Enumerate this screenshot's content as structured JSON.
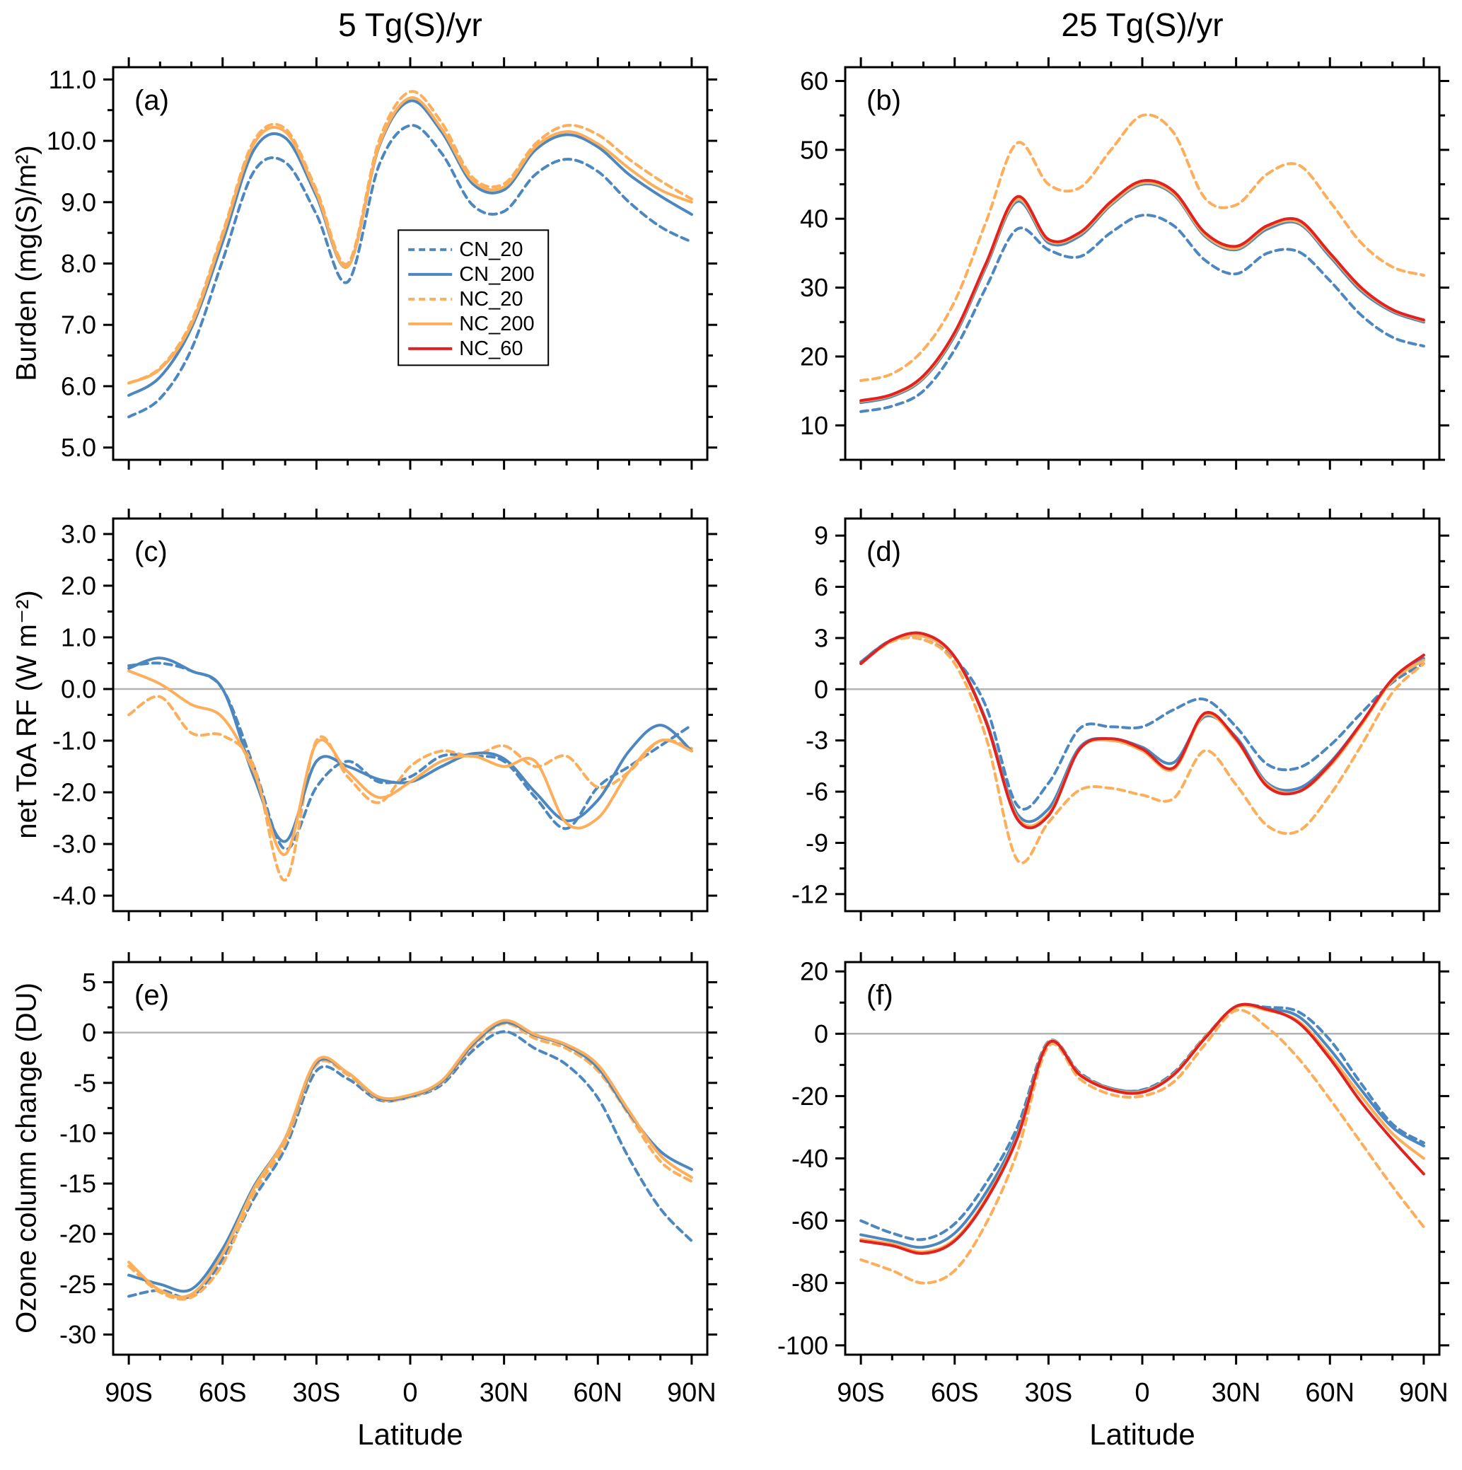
{
  "figure": {
    "column_titles": [
      "5 Tg(S)/yr",
      "25 Tg(S)/yr"
    ],
    "xlabel": "Latitude",
    "row_ylabels": [
      "Burden (mg(S)/m²)",
      "net ToA RF (W m⁻²)",
      "Ozone column change (DU)"
    ]
  },
  "colors": {
    "blue": "#4c87bf",
    "orange": "#fcae5a",
    "red": "#e02220",
    "zero_line": "#b3b3b3",
    "frame": "#000000"
  },
  "legend": {
    "entries": [
      {
        "label": "CN_20",
        "color_key": "blue",
        "dashed": true
      },
      {
        "label": "CN_200",
        "color_key": "blue",
        "dashed": false
      },
      {
        "label": "NC_20",
        "color_key": "orange",
        "dashed": true
      },
      {
        "label": "NC_200",
        "color_key": "orange",
        "dashed": false
      },
      {
        "label": "NC_60",
        "color_key": "red",
        "dashed": false
      }
    ]
  },
  "chart_data": [
    {
      "id": "a",
      "label": "(a)",
      "type": "line",
      "row": 0,
      "col": 0,
      "ylim": [
        4.8,
        11.2
      ],
      "yticks": [
        5,
        6,
        7,
        8,
        9,
        10,
        11
      ],
      "ytick_labels": [
        "5.0",
        "6.0",
        "7.0",
        "8.0",
        "9.0",
        "10.0",
        "11.0"
      ],
      "xlim": [
        -95,
        95
      ],
      "xticks": [
        -90,
        -60,
        -30,
        0,
        30,
        60,
        90
      ],
      "xtick_labels": [
        "90S",
        "60S",
        "30S",
        "0",
        "30N",
        "60N",
        "90N"
      ],
      "zero_line": false,
      "legend": true,
      "x": [
        -90,
        -80,
        -70,
        -60,
        -50,
        -40,
        -30,
        -20,
        -10,
        0,
        10,
        20,
        30,
        40,
        50,
        60,
        70,
        80,
        90
      ],
      "series": [
        {
          "name": "CN_20",
          "color_key": "blue",
          "dashed": true,
          "values": [
            5.5,
            5.8,
            6.6,
            8.05,
            9.5,
            9.65,
            8.8,
            7.7,
            9.6,
            10.25,
            9.8,
            8.95,
            8.85,
            9.45,
            9.7,
            9.5,
            9.0,
            8.6,
            8.35
          ]
        },
        {
          "name": "CN_200",
          "color_key": "blue",
          "dashed": false,
          "values": [
            5.85,
            6.15,
            6.95,
            8.35,
            9.85,
            10.05,
            9.1,
            7.95,
            9.9,
            10.65,
            10.15,
            9.3,
            9.2,
            9.85,
            10.1,
            9.9,
            9.45,
            9.1,
            8.8
          ]
        },
        {
          "name": "NC_20",
          "color_key": "orange",
          "dashed": true,
          "values": [
            6.05,
            6.3,
            7.05,
            8.5,
            10.0,
            10.2,
            9.2,
            8.0,
            10.0,
            10.8,
            10.3,
            9.4,
            9.3,
            9.95,
            10.25,
            10.1,
            9.7,
            9.35,
            9.05
          ]
        },
        {
          "name": "NC_200",
          "color_key": "orange",
          "dashed": false,
          "values": [
            6.05,
            6.28,
            7.0,
            8.45,
            9.95,
            10.15,
            9.15,
            7.95,
            9.92,
            10.7,
            10.2,
            9.35,
            9.25,
            9.9,
            10.15,
            9.95,
            9.55,
            9.2,
            9.0
          ]
        }
      ]
    },
    {
      "id": "b",
      "label": "(b)",
      "type": "line",
      "row": 0,
      "col": 1,
      "ylim": [
        5,
        62
      ],
      "yticks": [
        10,
        20,
        30,
        40,
        50,
        60
      ],
      "ytick_labels": [
        "10",
        "20",
        "30",
        "40",
        "50",
        "60"
      ],
      "xlim": [
        -95,
        95
      ],
      "xticks": [
        -90,
        -60,
        -30,
        0,
        30,
        60,
        90
      ],
      "xtick_labels": [
        "90S",
        "60S",
        "30S",
        "0",
        "30N",
        "60N",
        "90N"
      ],
      "zero_line": false,
      "legend": false,
      "x": [
        -90,
        -80,
        -70,
        -60,
        -50,
        -40,
        -30,
        -20,
        -10,
        0,
        10,
        20,
        30,
        40,
        50,
        60,
        70,
        80,
        90
      ],
      "series": [
        {
          "name": "CN_20",
          "color_key": "blue",
          "dashed": true,
          "values": [
            12,
            12.8,
            15,
            21,
            30,
            38.5,
            35.5,
            34.5,
            38,
            40.5,
            39,
            34,
            32,
            35,
            35.2,
            31,
            26,
            22.8,
            21.5
          ]
        },
        {
          "name": "CN_200",
          "color_key": "blue",
          "dashed": false,
          "values": [
            13.3,
            14.2,
            16.8,
            23,
            33,
            42.5,
            36.5,
            37.5,
            42,
            45,
            43.5,
            37.5,
            35.5,
            38.5,
            39.3,
            34.5,
            29.5,
            26.5,
            25
          ]
        },
        {
          "name": "NC_20",
          "color_key": "orange",
          "dashed": true,
          "values": [
            16.5,
            17.5,
            21,
            28,
            39.5,
            51,
            45,
            44.5,
            50,
            55,
            52.5,
            43,
            42,
            46.5,
            47.8,
            42.5,
            36.5,
            33,
            31.8
          ]
        },
        {
          "name": "NC_200",
          "color_key": "orange",
          "dashed": false,
          "values": [
            13.5,
            14.4,
            17,
            23.3,
            33.3,
            42.8,
            36.8,
            37.8,
            42.2,
            45.2,
            43.7,
            37.7,
            35.7,
            38.8,
            39.5,
            34.8,
            29.8,
            26.7,
            25.2
          ]
        },
        {
          "name": "NC_60",
          "color_key": "red",
          "dashed": false,
          "values": [
            13.6,
            14.5,
            17.2,
            23.5,
            33.5,
            43.2,
            37,
            38,
            42.5,
            45.5,
            44,
            38,
            36,
            39,
            39.8,
            35,
            30,
            26.8,
            25.3
          ]
        }
      ]
    },
    {
      "id": "c",
      "label": "(c)",
      "type": "line",
      "row": 1,
      "col": 0,
      "ylim": [
        -4.3,
        3.3
      ],
      "yticks": [
        -4,
        -3,
        -2,
        -1,
        0,
        1,
        2,
        3
      ],
      "ytick_labels": [
        "-4.0",
        "-3.0",
        "-2.0",
        "-1.0",
        "0.0",
        "1.0",
        "2.0",
        "3.0"
      ],
      "xlim": [
        -95,
        95
      ],
      "xticks": [
        -90,
        -60,
        -30,
        0,
        30,
        60,
        90
      ],
      "xtick_labels": [
        "90S",
        "60S",
        "30S",
        "0",
        "30N",
        "60N",
        "90N"
      ],
      "zero_line": true,
      "legend": false,
      "x": [
        -90,
        -80,
        -70,
        -60,
        -50,
        -40,
        -30,
        -20,
        -10,
        0,
        10,
        20,
        30,
        40,
        50,
        60,
        70,
        80,
        90
      ],
      "series": [
        {
          "name": "CN_20",
          "color_key": "blue",
          "dashed": true,
          "values": [
            0.45,
            0.5,
            0.35,
            0.0,
            -1.5,
            -3.1,
            -1.9,
            -1.4,
            -1.8,
            -1.7,
            -1.3,
            -1.3,
            -1.4,
            -2.1,
            -2.7,
            -1.9,
            -1.5,
            -1.1,
            -0.7
          ]
        },
        {
          "name": "CN_200",
          "color_key": "blue",
          "dashed": false,
          "values": [
            0.4,
            0.6,
            0.35,
            0.0,
            -1.7,
            -2.95,
            -1.4,
            -1.5,
            -1.75,
            -1.8,
            -1.5,
            -1.25,
            -1.35,
            -2.0,
            -2.55,
            -2.15,
            -1.2,
            -0.7,
            -1.2
          ]
        },
        {
          "name": "NC_20",
          "color_key": "orange",
          "dashed": true,
          "values": [
            -0.5,
            -0.15,
            -0.85,
            -0.9,
            -1.5,
            -3.7,
            -1.0,
            -1.7,
            -2.2,
            -1.5,
            -1.2,
            -1.3,
            -1.1,
            -1.5,
            -1.3,
            -1.9,
            -1.6,
            -1.0,
            -1.15
          ]
        },
        {
          "name": "NC_200",
          "color_key": "orange",
          "dashed": false,
          "values": [
            0.35,
            0.1,
            -0.3,
            -0.55,
            -1.6,
            -3.2,
            -1.05,
            -1.6,
            -2.1,
            -1.8,
            -1.4,
            -1.3,
            -1.5,
            -1.4,
            -2.6,
            -2.5,
            -1.6,
            -1.0,
            -1.2
          ]
        }
      ]
    },
    {
      "id": "d",
      "label": "(d)",
      "type": "line",
      "row": 1,
      "col": 1,
      "ylim": [
        -13,
        10
      ],
      "yticks": [
        -12,
        -9,
        -6,
        -3,
        0,
        3,
        6,
        9
      ],
      "ytick_labels": [
        "-12",
        "-9",
        "-6",
        "-3",
        "0",
        "3",
        "6",
        "9"
      ],
      "xlim": [
        -95,
        95
      ],
      "xticks": [
        -90,
        -60,
        -30,
        0,
        30,
        60,
        90
      ],
      "xtick_labels": [
        "90S",
        "60S",
        "30S",
        "0",
        "30N",
        "60N",
        "90N"
      ],
      "zero_line": true,
      "legend": false,
      "x": [
        -90,
        -80,
        -70,
        -60,
        -50,
        -40,
        -30,
        -20,
        -10,
        0,
        10,
        20,
        30,
        40,
        50,
        60,
        70,
        80,
        90
      ],
      "series": [
        {
          "name": "CN_20",
          "color_key": "blue",
          "dashed": true,
          "values": [
            1.6,
            2.9,
            2.9,
            1.8,
            -1.0,
            -6.8,
            -5.5,
            -2.3,
            -2.2,
            -2.2,
            -1.2,
            -0.6,
            -2.2,
            -4.4,
            -4.6,
            -3.3,
            -1.4,
            0.4,
            1.5
          ]
        },
        {
          "name": "CN_200",
          "color_key": "blue",
          "dashed": false,
          "values": [
            1.6,
            2.9,
            3.1,
            1.9,
            -1.8,
            -7.3,
            -7.0,
            -3.4,
            -2.9,
            -3.4,
            -4.3,
            -1.6,
            -2.8,
            -5.5,
            -5.8,
            -4.3,
            -2.0,
            0.5,
            1.8
          ]
        },
        {
          "name": "NC_20",
          "color_key": "orange",
          "dashed": true,
          "values": [
            1.5,
            2.8,
            2.9,
            1.5,
            -2.8,
            -10.0,
            -7.8,
            -5.9,
            -5.8,
            -6.2,
            -6.4,
            -3.6,
            -5.6,
            -8.0,
            -8.3,
            -6.2,
            -3.3,
            -0.2,
            1.5
          ]
        },
        {
          "name": "NC_200",
          "color_key": "orange",
          "dashed": false,
          "values": [
            1.5,
            2.85,
            3.1,
            1.85,
            -1.9,
            -7.5,
            -7.3,
            -3.5,
            -3.0,
            -3.6,
            -4.7,
            -1.5,
            -3.0,
            -5.6,
            -6.0,
            -4.5,
            -2.1,
            0.5,
            1.7
          ]
        },
        {
          "name": "NC_60",
          "color_key": "red",
          "dashed": false,
          "values": [
            1.5,
            2.9,
            3.25,
            1.9,
            -1.9,
            -7.6,
            -7.4,
            -3.5,
            -2.9,
            -3.5,
            -4.6,
            -1.4,
            -2.9,
            -5.7,
            -6.0,
            -4.4,
            -2.0,
            0.6,
            2.0
          ]
        }
      ]
    },
    {
      "id": "e",
      "label": "(e)",
      "type": "line",
      "row": 2,
      "col": 0,
      "ylim": [
        -32,
        7
      ],
      "yticks": [
        -30,
        -25,
        -20,
        -15,
        -10,
        -5,
        0,
        5
      ],
      "ytick_labels": [
        "-30",
        "-25",
        "-20",
        "-15",
        "-10",
        "-5",
        "0",
        "5"
      ],
      "xlim": [
        -95,
        95
      ],
      "xticks": [
        -90,
        -60,
        -30,
        0,
        30,
        60,
        90
      ],
      "xtick_labels": [
        "90S",
        "60S",
        "30S",
        "0",
        "30N",
        "60N",
        "90N"
      ],
      "zero_line": true,
      "legend": false,
      "x": [
        -90,
        -80,
        -70,
        -60,
        -50,
        -40,
        -30,
        -20,
        -10,
        0,
        10,
        20,
        30,
        40,
        50,
        60,
        70,
        80,
        90
      ],
      "series": [
        {
          "name": "CN_20",
          "color_key": "blue",
          "dashed": true,
          "values": [
            -26.2,
            -25.6,
            -26.2,
            -22.5,
            -16.5,
            -11.5,
            -3.8,
            -4.6,
            -6.7,
            -6.4,
            -5.2,
            -1.8,
            0.1,
            -1.6,
            -3.2,
            -6.5,
            -12.5,
            -17.5,
            -20.7
          ]
        },
        {
          "name": "CN_200",
          "color_key": "blue",
          "dashed": false,
          "values": [
            -24.1,
            -25.0,
            -25.5,
            -21.5,
            -15.3,
            -10.5,
            -3.0,
            -4.0,
            -6.5,
            -6.3,
            -4.9,
            -1.2,
            1.0,
            -0.3,
            -1.3,
            -3.5,
            -8.0,
            -11.8,
            -13.6
          ]
        },
        {
          "name": "NC_20",
          "color_key": "orange",
          "dashed": true,
          "values": [
            -23.2,
            -25.8,
            -26.3,
            -23.0,
            -16.0,
            -11.0,
            -3.2,
            -4.2,
            -6.6,
            -6.4,
            -5.0,
            -1.4,
            0.9,
            -0.6,
            -1.6,
            -3.8,
            -8.2,
            -12.8,
            -14.8
          ]
        },
        {
          "name": "NC_200",
          "color_key": "orange",
          "dashed": false,
          "values": [
            -22.8,
            -25.6,
            -26.0,
            -22.0,
            -15.5,
            -10.5,
            -2.8,
            -4.0,
            -6.4,
            -6.2,
            -4.8,
            -1.0,
            1.2,
            -0.2,
            -1.2,
            -3.2,
            -7.8,
            -12.2,
            -14.4
          ]
        }
      ]
    },
    {
      "id": "f",
      "label": "(f)",
      "type": "line",
      "row": 2,
      "col": 1,
      "ylim": [
        -103,
        23
      ],
      "yticks": [
        -100,
        -80,
        -60,
        -40,
        -20,
        0,
        20
      ],
      "ytick_labels": [
        "-100",
        "-80",
        "-60",
        "-40",
        "-20",
        "0",
        "20"
      ],
      "xlim": [
        -95,
        95
      ],
      "xticks": [
        -90,
        -60,
        -30,
        0,
        30,
        60,
        90
      ],
      "xtick_labels": [
        "90S",
        "60S",
        "30S",
        "0",
        "30N",
        "60N",
        "90N"
      ],
      "zero_line": true,
      "legend": false,
      "x": [
        -90,
        -80,
        -70,
        -60,
        -50,
        -40,
        -30,
        -20,
        -10,
        0,
        10,
        20,
        30,
        40,
        50,
        60,
        70,
        80,
        90
      ],
      "series": [
        {
          "name": "CN_20",
          "color_key": "blue",
          "dashed": true,
          "values": [
            -60,
            -64,
            -66,
            -61,
            -48,
            -30,
            -2.5,
            -12.5,
            -17.5,
            -18,
            -12.5,
            -1,
            8.5,
            8.5,
            7,
            -2,
            -16,
            -29,
            -35
          ]
        },
        {
          "name": "CN_200",
          "color_key": "blue",
          "dashed": false,
          "values": [
            -64.5,
            -66.5,
            -68.5,
            -64,
            -51,
            -32,
            -3,
            -13,
            -17.5,
            -18.2,
            -13,
            -1.5,
            8.8,
            8,
            5.5,
            -5,
            -18,
            -30,
            -36
          ]
        },
        {
          "name": "NC_20",
          "color_key": "orange",
          "dashed": true,
          "values": [
            -72.5,
            -76,
            -80,
            -76,
            -61,
            -38,
            -4,
            -14.5,
            -19.5,
            -20,
            -15.5,
            -3.5,
            7.5,
            2,
            -8,
            -21,
            -35,
            -49,
            -62
          ]
        },
        {
          "name": "NC_200",
          "color_key": "orange",
          "dashed": false,
          "values": [
            -66,
            -67.5,
            -70,
            -66,
            -53,
            -33,
            -2.8,
            -13,
            -17.8,
            -18.5,
            -13,
            -1.2,
            8.5,
            7.5,
            4,
            -7,
            -20,
            -32,
            -40
          ]
        },
        {
          "name": "NC_60",
          "color_key": "red",
          "dashed": false,
          "values": [
            -66.5,
            -68,
            -70.5,
            -66.5,
            -53.5,
            -33.5,
            -3,
            -13.2,
            -18,
            -18.8,
            -13.2,
            -1.5,
            8.8,
            7.8,
            3.5,
            -8,
            -22,
            -34,
            -45
          ]
        }
      ]
    }
  ]
}
